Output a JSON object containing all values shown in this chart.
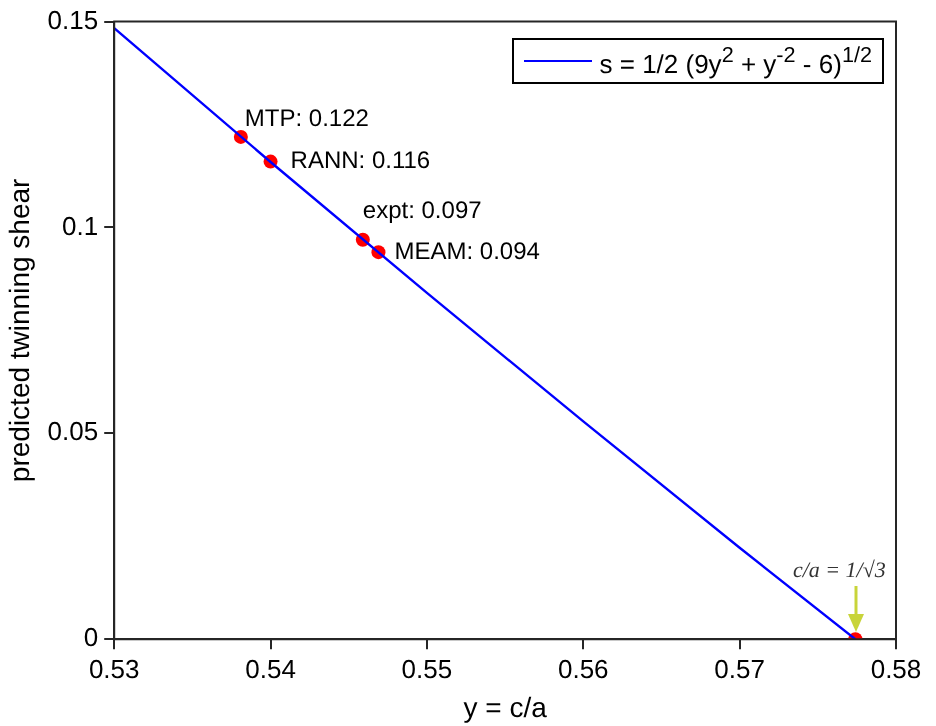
{
  "chart_data": {
    "type": "line",
    "xlabel": "y = c/a",
    "ylabel": "predicted twinning shear",
    "xlim": [
      0.53,
      0.58
    ],
    "xticks": [
      0.53,
      0.54,
      0.55,
      0.56,
      0.57,
      0.58
    ],
    "ylim": [
      0,
      0.15
    ],
    "yticks": [
      0,
      0.05,
      {
        "value": 0.1,
        "label": "0.1"
      },
      0.15
    ],
    "legend": "top right",
    "series": [
      {
        "name": "s = 1/2 (9y$^{2}$ + y$^{-2}$ - 6)$^{1/2}$",
        "color": "#0000ff",
        "marker": "none",
        "x": [
          0.53,
          0.54,
          0.55,
          0.56,
          0.57,
          0.5774
        ],
        "values": [
          0.1484,
          0.1159,
          0.0841,
          0.0529,
          0.0222,
          0
        ]
      },
      {
        "type": "scatter",
        "color": "#ff0000",
        "marker": "circle",
        "x": [
          0.5381,
          0.54,
          0.5459,
          0.5469,
          0.5774
        ],
        "values": [
          0.122,
          0.116,
          0.097,
          0.094,
          0
        ],
        "value_labels": [
          "MTP: 0.122",
          "RANN: 0.116",
          "expt: 0.097",
          "MEAM: 0.094",
          null
        ]
      }
    ],
    "annotations": [
      {
        "text": "c/a = 1/√3",
        "x": 0.5774,
        "y": 0
      }
    ]
  }
}
